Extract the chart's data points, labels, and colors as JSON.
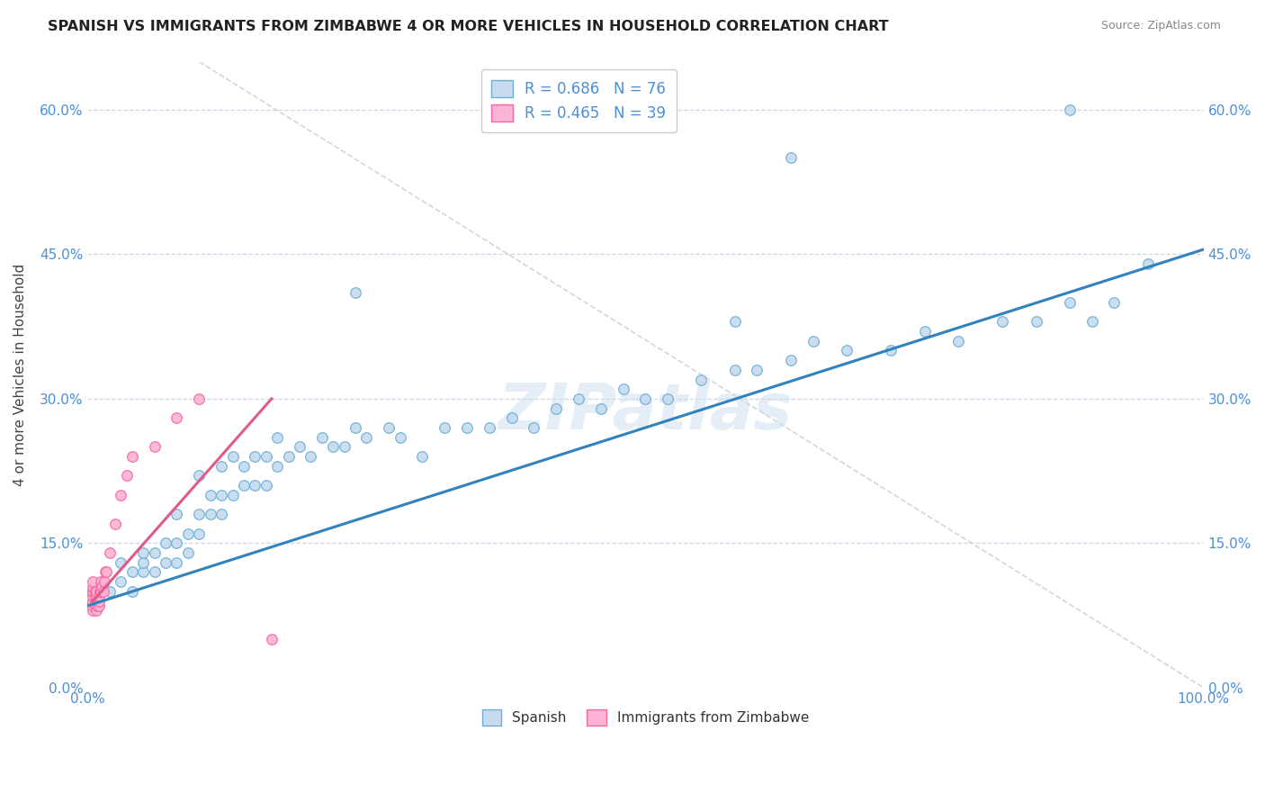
{
  "title": "SPANISH VS IMMIGRANTS FROM ZIMBABWE 4 OR MORE VEHICLES IN HOUSEHOLD CORRELATION CHART",
  "source": "Source: ZipAtlas.com",
  "ylabel": "4 or more Vehicles in Household",
  "xlim": [
    0,
    1.0
  ],
  "ylim": [
    0,
    0.65
  ],
  "ytick_values": [
    0.0,
    0.15,
    0.3,
    0.45,
    0.6
  ],
  "watermark_text": "ZIPatlas",
  "legend_blue_label": "R = 0.686   N = 76",
  "legend_pink_label": "R = 0.465   N = 39",
  "legend_bottom_label1": "Spanish",
  "legend_bottom_label2": "Immigrants from Zimbabwe",
  "blue_dot_face": "#c6dbef",
  "blue_dot_edge": "#6baed6",
  "pink_dot_face": "#fbb4d4",
  "pink_dot_edge": "#f768a1",
  "trendline_blue": "#3182bd",
  "trendline_pink": "#e05a8a",
  "grid_color": "#c8d8e8",
  "diag_color": "#cccccc",
  "blue_trend_x0": 0.0,
  "blue_trend_y0": 0.085,
  "blue_trend_x1": 1.0,
  "blue_trend_y1": 0.455,
  "pink_trend_x0": 0.005,
  "pink_trend_y0": 0.09,
  "pink_trend_x1": 0.165,
  "pink_trend_y1": 0.3,
  "blue_scatter_x": [
    0.02,
    0.03,
    0.03,
    0.04,
    0.04,
    0.05,
    0.05,
    0.05,
    0.06,
    0.06,
    0.07,
    0.07,
    0.08,
    0.08,
    0.08,
    0.09,
    0.09,
    0.1,
    0.1,
    0.1,
    0.11,
    0.11,
    0.12,
    0.12,
    0.12,
    0.13,
    0.13,
    0.14,
    0.14,
    0.15,
    0.15,
    0.16,
    0.16,
    0.17,
    0.17,
    0.18,
    0.19,
    0.2,
    0.21,
    0.22,
    0.23,
    0.24,
    0.25,
    0.27,
    0.28,
    0.3,
    0.32,
    0.34,
    0.36,
    0.38,
    0.4,
    0.42,
    0.44,
    0.46,
    0.48,
    0.5,
    0.52,
    0.55,
    0.58,
    0.6,
    0.63,
    0.65,
    0.68,
    0.72,
    0.75,
    0.78,
    0.82,
    0.85,
    0.88,
    0.9,
    0.92,
    0.24,
    0.58,
    0.63,
    0.88,
    0.95
  ],
  "blue_scatter_y": [
    0.1,
    0.11,
    0.13,
    0.1,
    0.12,
    0.12,
    0.13,
    0.14,
    0.12,
    0.14,
    0.13,
    0.15,
    0.13,
    0.15,
    0.18,
    0.14,
    0.16,
    0.16,
    0.18,
    0.22,
    0.18,
    0.2,
    0.18,
    0.2,
    0.23,
    0.2,
    0.24,
    0.21,
    0.23,
    0.21,
    0.24,
    0.21,
    0.24,
    0.23,
    0.26,
    0.24,
    0.25,
    0.24,
    0.26,
    0.25,
    0.25,
    0.27,
    0.26,
    0.27,
    0.26,
    0.24,
    0.27,
    0.27,
    0.27,
    0.28,
    0.27,
    0.29,
    0.3,
    0.29,
    0.31,
    0.3,
    0.3,
    0.32,
    0.33,
    0.33,
    0.34,
    0.36,
    0.35,
    0.35,
    0.37,
    0.36,
    0.38,
    0.38,
    0.4,
    0.38,
    0.4,
    0.41,
    0.38,
    0.55,
    0.6,
    0.44
  ],
  "pink_scatter_x": [
    0.005,
    0.005,
    0.005,
    0.005,
    0.005,
    0.005,
    0.005,
    0.005,
    0.005,
    0.007,
    0.007,
    0.007,
    0.007,
    0.008,
    0.008,
    0.008,
    0.008,
    0.009,
    0.009,
    0.01,
    0.01,
    0.01,
    0.011,
    0.012,
    0.012,
    0.013,
    0.014,
    0.015,
    0.016,
    0.017,
    0.02,
    0.025,
    0.03,
    0.035,
    0.04,
    0.06,
    0.08,
    0.1,
    0.165
  ],
  "pink_scatter_y": [
    0.08,
    0.085,
    0.09,
    0.09,
    0.095,
    0.1,
    0.1,
    0.105,
    0.11,
    0.085,
    0.09,
    0.095,
    0.1,
    0.08,
    0.09,
    0.095,
    0.1,
    0.085,
    0.09,
    0.085,
    0.09,
    0.095,
    0.1,
    0.1,
    0.11,
    0.105,
    0.1,
    0.11,
    0.12,
    0.12,
    0.14,
    0.17,
    0.2,
    0.22,
    0.24,
    0.25,
    0.28,
    0.3,
    0.05
  ]
}
